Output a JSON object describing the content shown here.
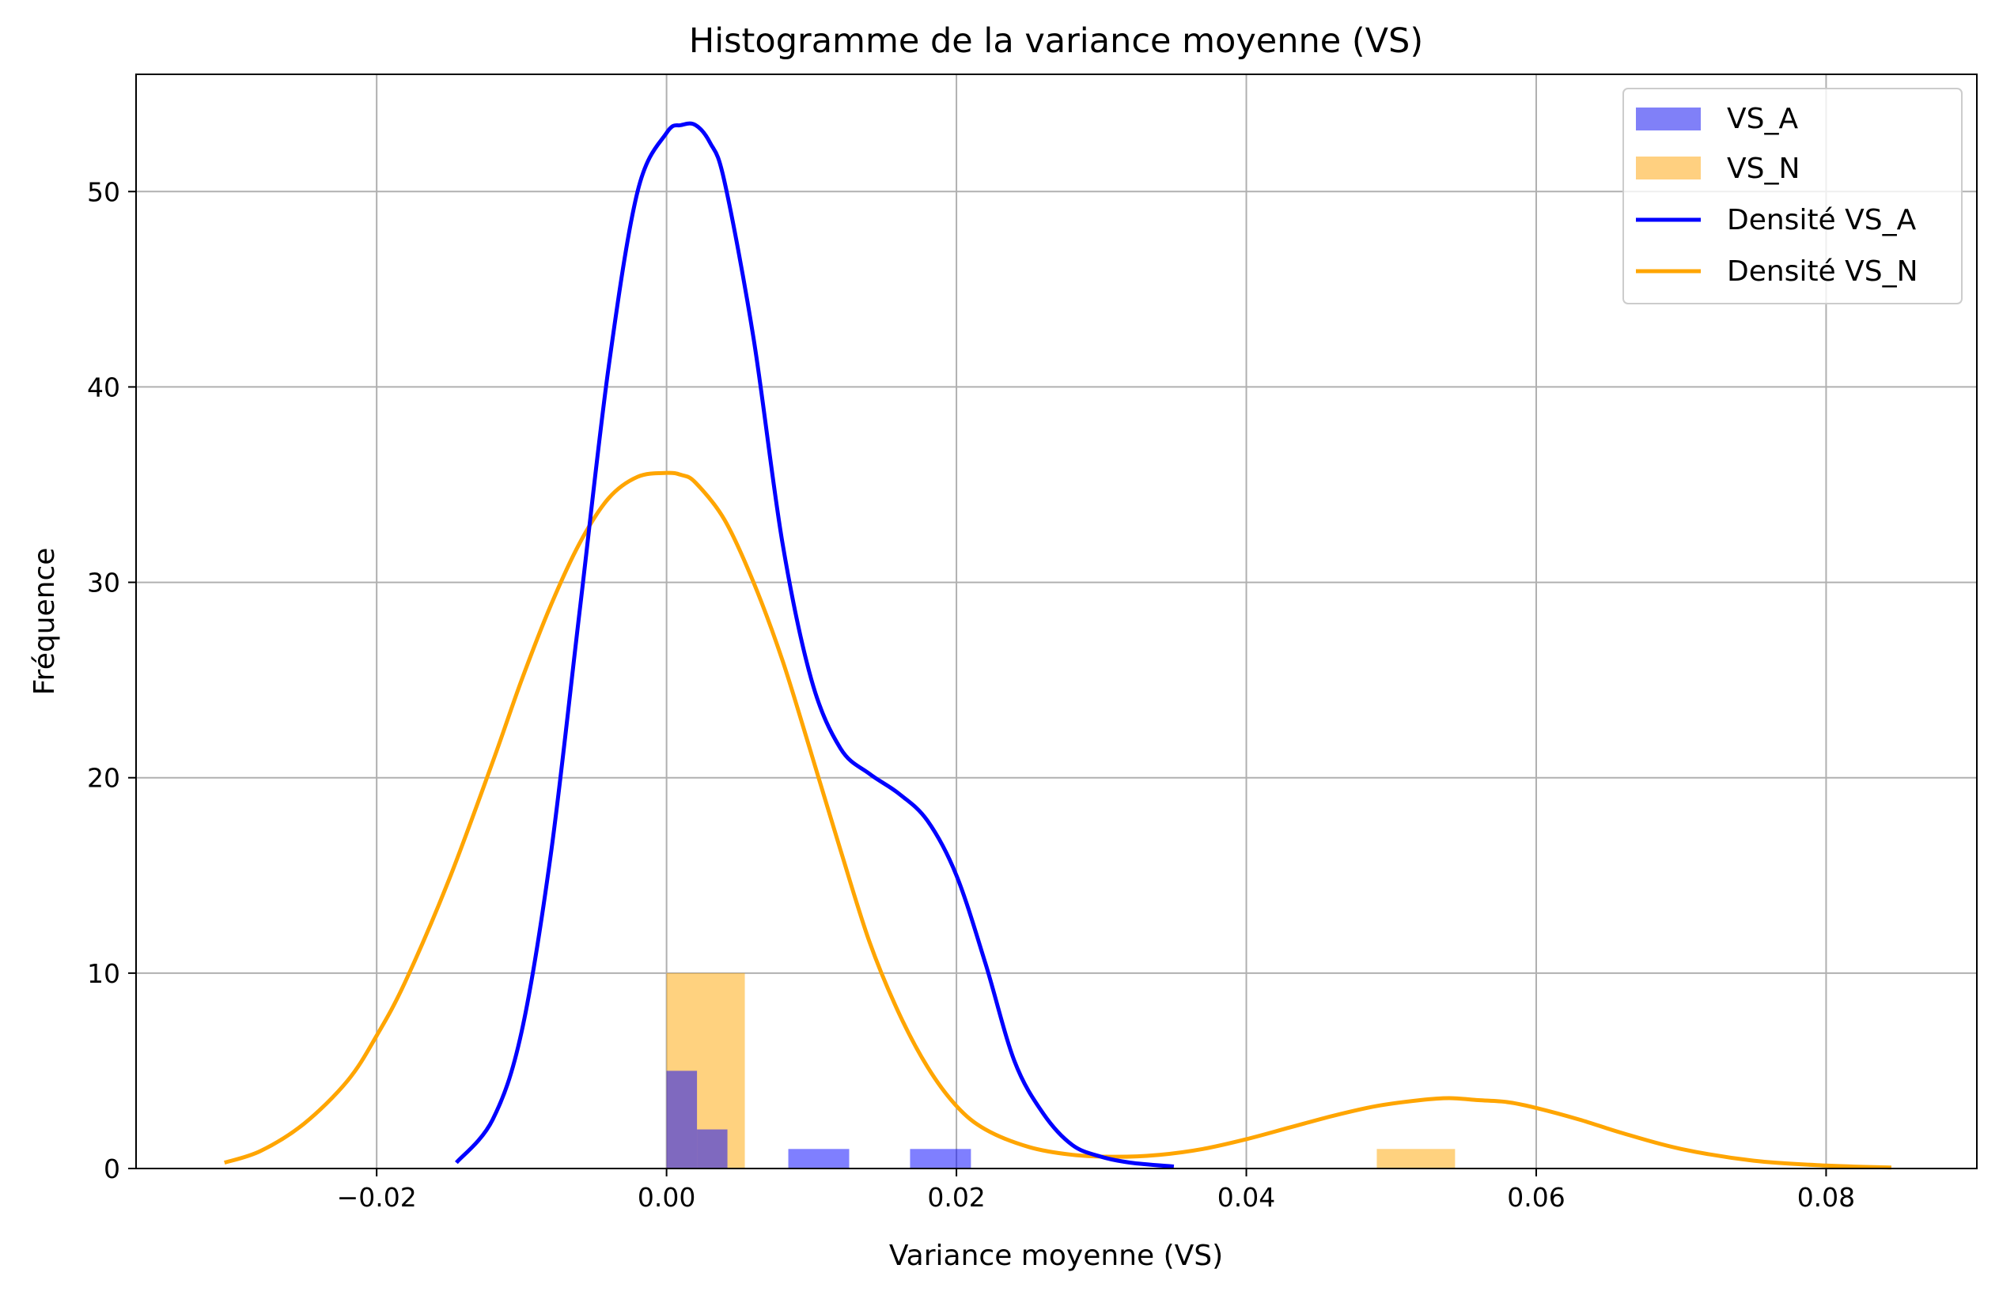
{
  "chart_data": {
    "type": "bar",
    "title": "Histogramme de la variance moyenne (VS)",
    "xlabel": "Variance moyenne (VS)",
    "ylabel": "Fréquence",
    "xlim": [
      -0.0366,
      0.0904
    ],
    "ylim": [
      0,
      56
    ],
    "xticks": [
      -0.02,
      0.0,
      0.02,
      0.04,
      0.06,
      0.08
    ],
    "xtick_labels": [
      "−0.02",
      "0.00",
      "0.02",
      "0.04",
      "0.06",
      "0.08"
    ],
    "yticks": [
      0,
      10,
      20,
      30,
      40,
      50
    ],
    "ytick_labels": [
      "0",
      "10",
      "20",
      "30",
      "40",
      "50"
    ],
    "grid": true,
    "legend_position": "top-right",
    "colors": {
      "vs_a_bar": "#8080f8",
      "vs_n_bar": "#ffd080",
      "vs_a_line": "#0000ff",
      "vs_n_line": "#ffa500",
      "grid": "#b0b0b0"
    },
    "series": [
      {
        "name": "VS_A",
        "kind": "histogram",
        "bins": [
          {
            "x0": 0.0,
            "x1": 0.0021,
            "count": 5
          },
          {
            "x0": 0.0021,
            "x1": 0.0042,
            "count": 2
          },
          {
            "x0": 0.0084,
            "x1": 0.0126,
            "count": 1
          },
          {
            "x0": 0.0168,
            "x1": 0.021,
            "count": 1
          }
        ]
      },
      {
        "name": "VS_N",
        "kind": "histogram",
        "bins": [
          {
            "x0": 0.0,
            "x1": 0.0054,
            "count": 10
          },
          {
            "x0": 0.049,
            "x1": 0.0544,
            "count": 1
          }
        ]
      },
      {
        "name": "Densité VS_A",
        "kind": "line",
        "x": [
          -0.0145,
          -0.012,
          -0.01,
          -0.008,
          -0.006,
          -0.004,
          -0.002,
          0.0,
          0.001,
          0.002,
          0.003,
          0.004,
          0.006,
          0.008,
          0.01,
          0.012,
          0.014,
          0.016,
          0.018,
          0.02,
          0.022,
          0.024,
          0.026,
          0.028,
          0.03,
          0.032,
          0.035
        ],
        "y": [
          0.3,
          2.5,
          7.0,
          16.0,
          28.5,
          41.0,
          50.0,
          53.0,
          53.4,
          53.4,
          52.5,
          50.5,
          42.5,
          32.0,
          25.0,
          21.5,
          20.2,
          19.2,
          17.8,
          15.0,
          10.5,
          5.5,
          2.8,
          1.2,
          0.6,
          0.3,
          0.1
        ]
      },
      {
        "name": "Densité VS_N",
        "kind": "line",
        "x": [
          -0.0305,
          -0.028,
          -0.025,
          -0.022,
          -0.02,
          -0.018,
          -0.015,
          -0.012,
          -0.01,
          -0.008,
          -0.006,
          -0.004,
          -0.002,
          0.0,
          0.001,
          0.002,
          0.004,
          0.006,
          0.008,
          0.01,
          0.012,
          0.014,
          0.016,
          0.018,
          0.02,
          0.022,
          0.025,
          0.028,
          0.031,
          0.034,
          0.037,
          0.04,
          0.043,
          0.046,
          0.049,
          0.052,
          0.054,
          0.056,
          0.058,
          0.06,
          0.063,
          0.066,
          0.07,
          0.075,
          0.08,
          0.0845
        ],
        "y": [
          0.3,
          0.9,
          2.3,
          4.5,
          6.8,
          9.6,
          14.8,
          20.8,
          25.0,
          28.8,
          32.0,
          34.3,
          35.4,
          35.6,
          35.5,
          35.1,
          33.2,
          30.0,
          26.0,
          21.2,
          16.3,
          11.6,
          8.0,
          5.2,
          3.2,
          2.0,
          1.1,
          0.7,
          0.6,
          0.7,
          1.0,
          1.5,
          2.1,
          2.7,
          3.2,
          3.5,
          3.6,
          3.5,
          3.4,
          3.1,
          2.5,
          1.8,
          1.0,
          0.4,
          0.15,
          0.05
        ]
      }
    ]
  }
}
